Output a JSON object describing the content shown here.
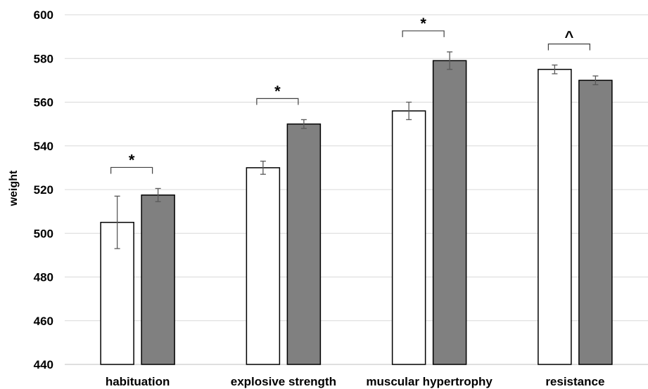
{
  "chart_data": {
    "type": "bar",
    "ylabel": "weight",
    "xlabel": "",
    "ylim": [
      440,
      600
    ],
    "yticks": [
      "440",
      "460",
      "480",
      "500",
      "520",
      "540",
      "560",
      "580",
      "600"
    ],
    "grid": "horizontal",
    "categories": [
      "habituation",
      "explosive strength",
      "muscular hypertrophy",
      "resistance"
    ],
    "series": [
      {
        "values": [
          505,
          530,
          556,
          575
        ],
        "errors": [
          12,
          3,
          4,
          2
        ],
        "color": "#ffffff"
      },
      {
        "values": [
          517.5,
          550,
          579,
          570
        ],
        "errors": [
          3,
          2,
          4,
          2
        ],
        "color": "#808080"
      }
    ],
    "significance": [
      "*",
      "*",
      "*",
      "^"
    ]
  }
}
